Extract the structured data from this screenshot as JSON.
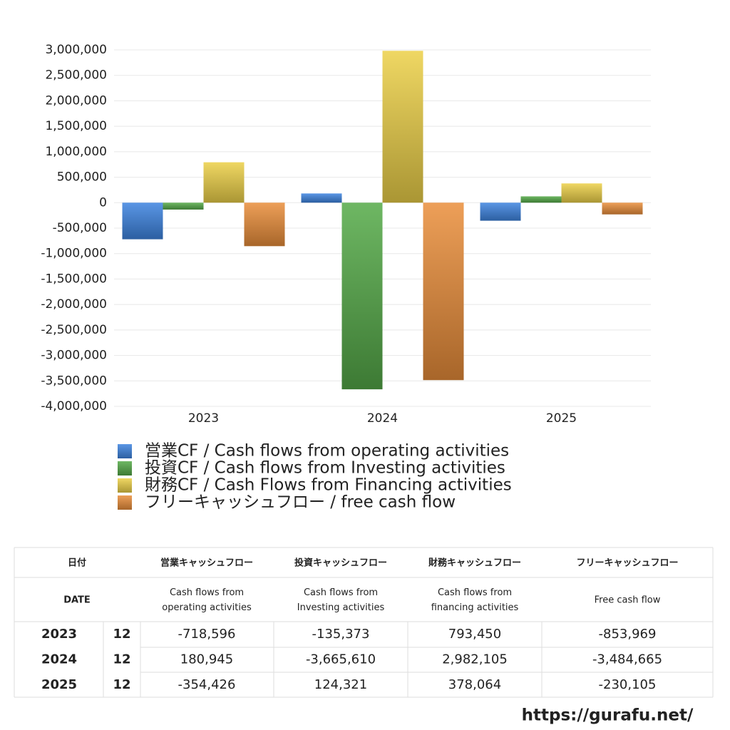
{
  "chart_data": {
    "type": "bar",
    "categories": [
      "2023",
      "2024",
      "2025"
    ],
    "series": [
      {
        "name": "営業CF / Cash flows from operating activities",
        "color": "#3d84e0",
        "values": [
          -718596,
          180945,
          -354426
        ]
      },
      {
        "name": "投資CF / Cash flows from Investing activities",
        "color": "#55aa48",
        "values": [
          -135373,
          -3665610,
          124321
        ]
      },
      {
        "name": "財務CF / Cash Flows from Financing activities",
        "color": "#ecd048",
        "values": [
          793450,
          2982105,
          378064
        ]
      },
      {
        "name": "フリーキャッシュフロー / free cash flow",
        "color": "#ea8e3a",
        "values": [
          -853969,
          -3484665,
          -230105
        ]
      }
    ],
    "ylim": [
      -4000000,
      3000000
    ],
    "yticks": [
      {
        "value": -4000000,
        "label": "-4,000,000"
      },
      {
        "value": -3500000,
        "label": "-3,500,000"
      },
      {
        "value": -3000000,
        "label": "-3,000,000"
      },
      {
        "value": -2500000,
        "label": "-2,500,000"
      },
      {
        "value": -2000000,
        "label": "-2,000,000"
      },
      {
        "value": -1500000,
        "label": "-1,500,000"
      },
      {
        "value": -1000000,
        "label": "-1,000,000"
      },
      {
        "value": -500000,
        "label": "-500,000"
      },
      0,
      {
        "value": 500000,
        "label": "500,000"
      },
      {
        "value": 1000000,
        "label": "1,000,000"
      },
      {
        "value": 1500000,
        "label": "1,500,000"
      },
      {
        "value": 2000000,
        "label": "2,000,000"
      },
      {
        "value": 2500000,
        "label": "2,500,000"
      },
      {
        "value": 3000000,
        "label": "3,000,000"
      }
    ],
    "grid": true
  },
  "table": {
    "header": [
      "日付",
      "営業キャッシュフロー",
      "投資キャッシュフロー",
      "財務キャッシュフロー",
      "フリーキャッシュフロー"
    ],
    "subheader": [
      [
        "DATE"
      ],
      [
        "Cash flows from",
        "operating activities"
      ],
      [
        "Cash flows from",
        "Investing activities"
      ],
      [
        "Cash flows from",
        "financing activities"
      ],
      [
        "Free cash flow"
      ]
    ],
    "rows": [
      [
        "2023",
        "12",
        "-718,596",
        "-135,373",
        "793,450",
        "-853,969"
      ],
      [
        "2024",
        "12",
        "180,945",
        "-3,665,610",
        "2,982,105",
        "-3,484,665"
      ],
      [
        "2025",
        "12",
        "-354,426",
        "124,321",
        "378,064",
        "-230,105"
      ]
    ]
  },
  "footer": "https://gurafu.net/"
}
